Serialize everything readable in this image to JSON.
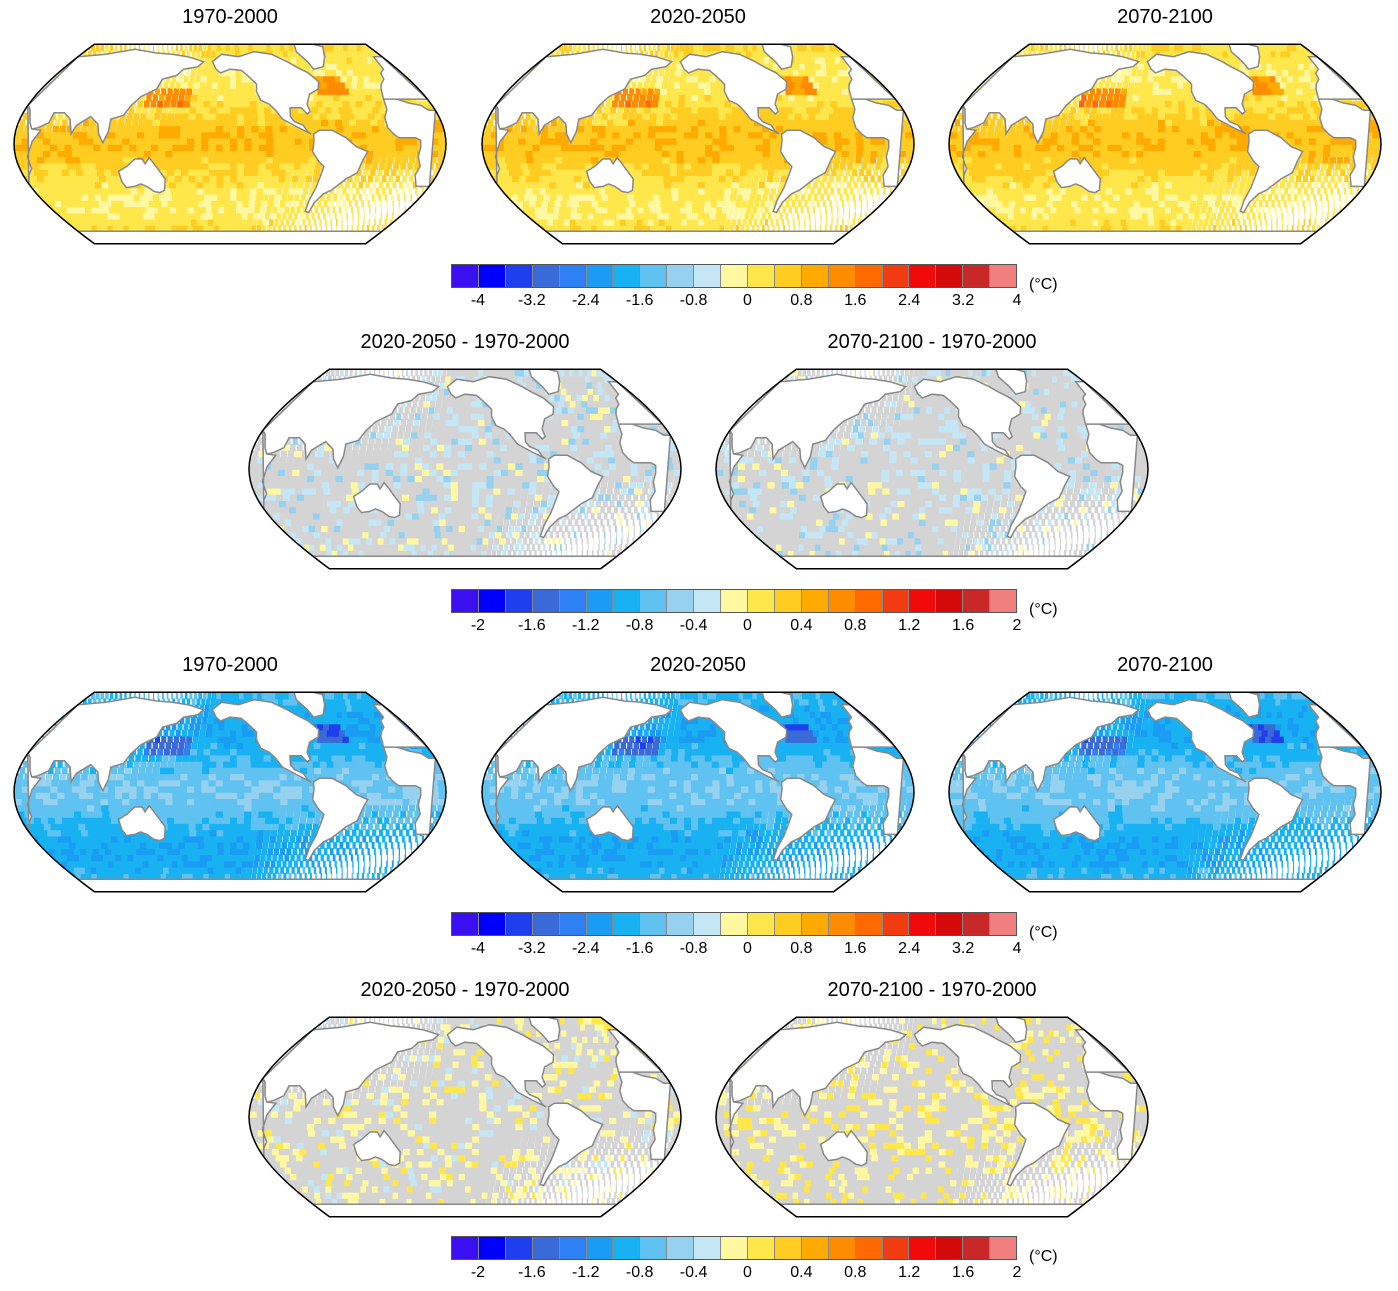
{
  "unit_label": "(°C)",
  "palette": [
    "#3a10f0",
    "#0000ff",
    "#1f3fee",
    "#3a6ad8",
    "#2f80f5",
    "#1a9cf5",
    "#18b2f2",
    "#5fc2f0",
    "#97d1f0",
    "#c5e6f5",
    "#fff8a0",
    "#ffe64a",
    "#ffcc22",
    "#ffaa00",
    "#ff8c00",
    "#ff6a00",
    "#f03c10",
    "#f00a0a",
    "#d40a0a",
    "#c82828",
    "#f08080"
  ],
  "land_color": "#ffffff",
  "coast_color": "#888888",
  "insignificant_color": "#d4d4d4",
  "rows": [
    {
      "kind": "absolute",
      "panels": [
        {
          "title": "1970-2000",
          "level": 0.8
        },
        {
          "title": "2020-2050",
          "level": 0.8
        },
        {
          "title": "2070-2100",
          "level": 0.8
        }
      ],
      "colorbar": {
        "ticks": [
          "-4",
          "-3.2",
          "-2.4",
          "-1.6",
          "-0.8",
          "0",
          "0.8",
          "1.6",
          "2.4",
          "3.2",
          "4"
        ]
      }
    },
    {
      "kind": "difference",
      "panels": [
        {
          "title": "2020-2050 - 1970-2000",
          "level": -0.1
        },
        {
          "title": "2070-2100 - 1970-2000",
          "level": -0.1
        }
      ],
      "colorbar": {
        "ticks": [
          "-2",
          "-1.6",
          "-1.2",
          "-0.8",
          "-0.4",
          "0",
          "0.4",
          "0.8",
          "1.2",
          "1.6",
          "2"
        ]
      }
    },
    {
      "kind": "absolute",
      "panels": [
        {
          "title": "1970-2000",
          "level": -1.2
        },
        {
          "title": "2020-2050",
          "level": -1.2
        },
        {
          "title": "2070-2100",
          "level": -1.2
        }
      ],
      "colorbar": {
        "ticks": [
          "-4",
          "-3.2",
          "-2.4",
          "-1.6",
          "-0.8",
          "0",
          "0.8",
          "1.6",
          "2.4",
          "3.2",
          "4"
        ]
      }
    },
    {
      "kind": "difference",
      "panels": [
        {
          "title": "2020-2050 - 1970-2000",
          "level": 0.1
        },
        {
          "title": "2070-2100 - 1970-2000",
          "level": 0.2
        }
      ],
      "colorbar": {
        "ticks": [
          "-2",
          "-1.6",
          "-1.2",
          "-0.8",
          "-0.4",
          "0",
          "0.4",
          "0.8",
          "1.2",
          "1.6",
          "2"
        ]
      }
    }
  ]
}
